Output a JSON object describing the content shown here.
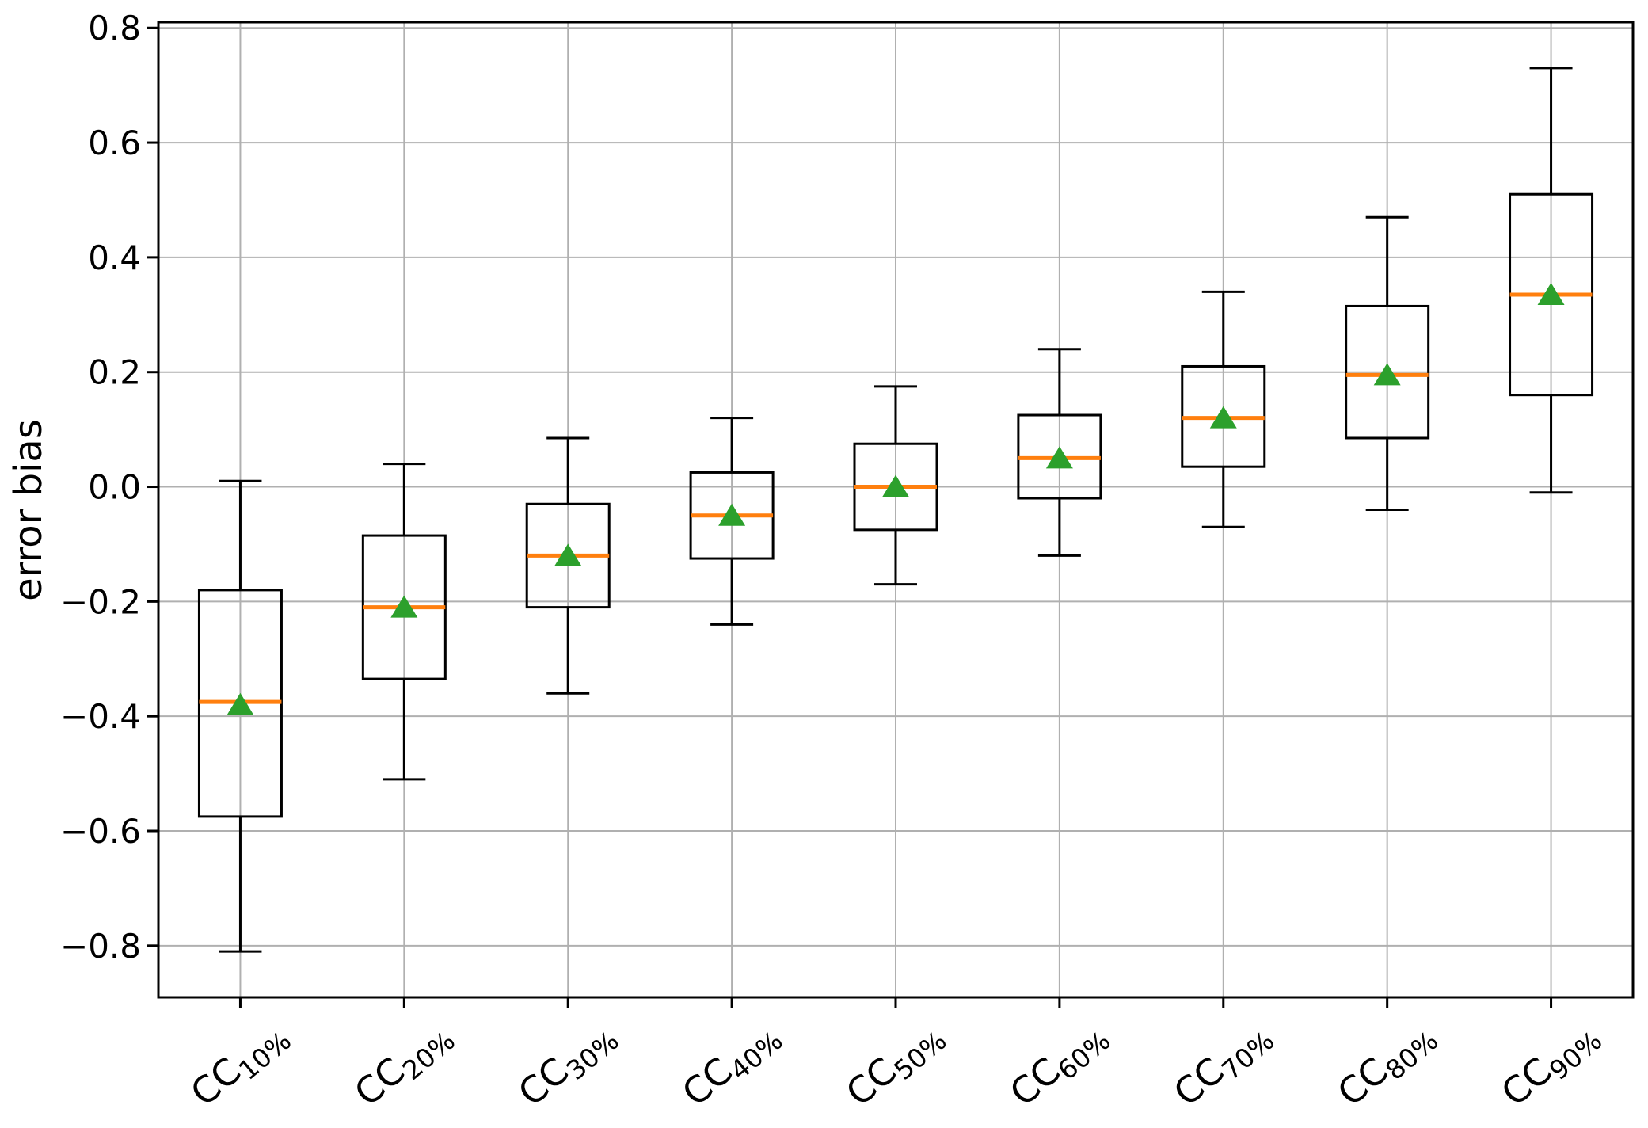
{
  "chart_data": {
    "type": "box",
    "title": "",
    "xlabel": "",
    "ylabel": "error bias",
    "grid": true,
    "legend": "none",
    "ylim": [
      -0.89,
      0.81
    ],
    "yticks": [
      0.8,
      0.6,
      0.4,
      0.2,
      0.0,
      -0.2,
      -0.4,
      -0.6,
      -0.8
    ],
    "categories": [
      "CC10%",
      "CC20%",
      "CC30%",
      "CC40%",
      "CC50%",
      "CC60%",
      "CC70%",
      "CC80%",
      "CC90%"
    ],
    "category_labels": [
      {
        "base": "CC",
        "sub": "10%"
      },
      {
        "base": "CC",
        "sub": "20%"
      },
      {
        "base": "CC",
        "sub": "30%"
      },
      {
        "base": "CC",
        "sub": "40%"
      },
      {
        "base": "CC",
        "sub": "50%"
      },
      {
        "base": "CC",
        "sub": "60%"
      },
      {
        "base": "CC",
        "sub": "70%"
      },
      {
        "base": "CC",
        "sub": "80%"
      },
      {
        "base": "CC",
        "sub": "90%"
      }
    ],
    "series": [
      {
        "label": "CC10%",
        "whislo": -0.81,
        "q1": -0.575,
        "med": -0.375,
        "q3": -0.18,
        "whishi": 0.01,
        "mean": -0.38
      },
      {
        "label": "CC20%",
        "whislo": -0.51,
        "q1": -0.335,
        "med": -0.21,
        "q3": -0.085,
        "whishi": 0.04,
        "mean": -0.21
      },
      {
        "label": "CC30%",
        "whislo": -0.36,
        "q1": -0.21,
        "med": -0.12,
        "q3": -0.03,
        "whishi": 0.085,
        "mean": -0.12
      },
      {
        "label": "CC40%",
        "whislo": -0.24,
        "q1": -0.125,
        "med": -0.05,
        "q3": 0.025,
        "whishi": 0.12,
        "mean": -0.05
      },
      {
        "label": "CC50%",
        "whislo": -0.17,
        "q1": -0.075,
        "med": 0.0,
        "q3": 0.075,
        "whishi": 0.175,
        "mean": 0.0
      },
      {
        "label": "CC60%",
        "whislo": -0.12,
        "q1": -0.02,
        "med": 0.05,
        "q3": 0.125,
        "whishi": 0.24,
        "mean": 0.05
      },
      {
        "label": "CC70%",
        "whislo": -0.07,
        "q1": 0.035,
        "med": 0.12,
        "q3": 0.21,
        "whishi": 0.34,
        "mean": 0.12
      },
      {
        "label": "CC80%",
        "whislo": -0.04,
        "q1": 0.085,
        "med": 0.195,
        "q3": 0.315,
        "whishi": 0.47,
        "mean": 0.195
      },
      {
        "label": "CC90%",
        "whislo": -0.01,
        "q1": 0.16,
        "med": 0.335,
        "q3": 0.51,
        "whishi": 0.73,
        "mean": 0.335
      }
    ],
    "colors": {
      "box_edge": "#000000",
      "whisker": "#000000",
      "median": "#ff7f0e",
      "mean_marker": "#2ca02c",
      "grid": "#b0b0b0",
      "background": "#ffffff",
      "tick_label": "#000000"
    }
  }
}
